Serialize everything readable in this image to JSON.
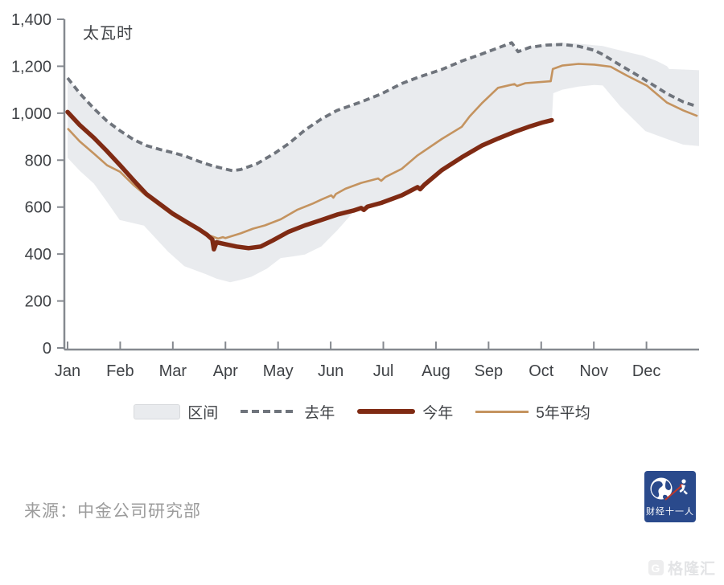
{
  "source": "来源：中金公司研究部",
  "logo": {
    "text": "财经十一人"
  },
  "watermark": {
    "badge": "G",
    "text": "格隆汇"
  },
  "legend": [
    {
      "label": "区间",
      "type": "band"
    },
    {
      "label": "去年",
      "type": "dashed"
    },
    {
      "label": "今年",
      "type": "thick"
    },
    {
      "label": "5年平均",
      "type": "thin"
    }
  ],
  "colors": {
    "band": "#e9ebee",
    "dashed": "#6f747c",
    "thisyear": "#7f2a13",
    "avg5": "#c4935f",
    "axis": "#85898f",
    "tick_label": "#3f4246",
    "source_text": "#9c9c9c",
    "logo_bg": "#2a4a8c",
    "logo_accent": "#c0392b",
    "watermark": "#e3e4e6"
  },
  "chart_data": {
    "type": "line",
    "title": "",
    "ylabel": "太瓦时",
    "ylim": [
      0,
      1400
    ],
    "yticks": [
      0,
      200,
      400,
      600,
      800,
      1000,
      1200,
      1400
    ],
    "x_months": [
      "Jan",
      "Feb",
      "Mar",
      "Apr",
      "May",
      "Jun",
      "Jul",
      "Aug",
      "Sep",
      "Oct",
      "Nov",
      "Dec"
    ],
    "x_unit": "month_fraction (0 = Jan 1, 12 = Dec 31)",
    "grid": false,
    "legend_position": "bottom",
    "series": [
      {
        "name": "去年",
        "style": "dashed",
        "color": "#6f747c",
        "points": [
          [
            0,
            1150
          ],
          [
            0.23,
            1085
          ],
          [
            0.5,
            1020
          ],
          [
            0.75,
            966
          ],
          [
            1,
            925
          ],
          [
            1.25,
            888
          ],
          [
            1.5,
            862
          ],
          [
            1.76,
            845
          ],
          [
            2,
            832
          ],
          [
            2.25,
            816
          ],
          [
            2.49,
            795
          ],
          [
            2.75,
            776
          ],
          [
            3,
            762
          ],
          [
            3.13,
            755
          ],
          [
            3.29,
            760
          ],
          [
            3.6,
            785
          ],
          [
            3.94,
            830
          ],
          [
            4.2,
            870
          ],
          [
            4.51,
            928
          ],
          [
            4.82,
            975
          ],
          [
            5.12,
            1012
          ],
          [
            5.58,
            1048
          ],
          [
            5.96,
            1082
          ],
          [
            6.35,
            1126
          ],
          [
            6.65,
            1152
          ],
          [
            7.11,
            1186
          ],
          [
            7.49,
            1222
          ],
          [
            7.87,
            1252
          ],
          [
            8.18,
            1278
          ],
          [
            8.44,
            1300
          ],
          [
            8.56,
            1262
          ],
          [
            8.79,
            1281
          ],
          [
            9.1,
            1290
          ],
          [
            9.4,
            1293
          ],
          [
            9.71,
            1285
          ],
          [
            10.01,
            1268
          ],
          [
            10.17,
            1250
          ],
          [
            10.5,
            1205
          ],
          [
            10.93,
            1148
          ],
          [
            11.39,
            1083
          ],
          [
            11.7,
            1048
          ],
          [
            11.93,
            1031
          ]
        ]
      },
      {
        "name": "5年平均",
        "style": "thin",
        "color": "#c4935f",
        "points": [
          [
            0,
            935
          ],
          [
            0.23,
            880
          ],
          [
            0.5,
            828
          ],
          [
            0.75,
            778
          ],
          [
            1,
            750
          ],
          [
            1.25,
            695
          ],
          [
            1.5,
            648
          ],
          [
            1.76,
            605
          ],
          [
            2,
            565
          ],
          [
            2.25,
            532
          ],
          [
            2.49,
            502
          ],
          [
            2.71,
            478
          ],
          [
            2.86,
            466
          ],
          [
            2.95,
            472
          ],
          [
            3,
            468
          ],
          [
            3.29,
            488
          ],
          [
            3.52,
            508
          ],
          [
            3.75,
            522
          ],
          [
            4.05,
            548
          ],
          [
            4.36,
            588
          ],
          [
            4.66,
            615
          ],
          [
            4.82,
            632
          ],
          [
            5.01,
            650
          ],
          [
            5.05,
            640
          ],
          [
            5.1,
            656
          ],
          [
            5.28,
            678
          ],
          [
            5.58,
            703
          ],
          [
            5.9,
            722
          ],
          [
            5.96,
            712
          ],
          [
            6.04,
            728
          ],
          [
            6.35,
            763
          ],
          [
            6.65,
            820
          ],
          [
            7.11,
            890
          ],
          [
            7.49,
            942
          ],
          [
            7.64,
            986
          ],
          [
            7.87,
            1042
          ],
          [
            8.18,
            1108
          ],
          [
            8.49,
            1124
          ],
          [
            8.54,
            1116
          ],
          [
            8.7,
            1128
          ],
          [
            9.18,
            1136
          ],
          [
            9.22,
            1188
          ],
          [
            9.4,
            1203
          ],
          [
            9.71,
            1210
          ],
          [
            10.01,
            1207
          ],
          [
            10.32,
            1198
          ],
          [
            10.63,
            1160
          ],
          [
            11.01,
            1117
          ],
          [
            11.39,
            1045
          ],
          [
            11.7,
            1012
          ],
          [
            11.97,
            988
          ]
        ]
      },
      {
        "name": "今年",
        "style": "thick",
        "color": "#7f2a13",
        "points": [
          [
            0,
            1005
          ],
          [
            0.23,
            950
          ],
          [
            0.5,
            895
          ],
          [
            0.75,
            838
          ],
          [
            1,
            778
          ],
          [
            1.25,
            715
          ],
          [
            1.5,
            655
          ],
          [
            1.76,
            612
          ],
          [
            2,
            572
          ],
          [
            2.25,
            538
          ],
          [
            2.5,
            505
          ],
          [
            2.65,
            482
          ],
          [
            2.75,
            462
          ],
          [
            2.78,
            420
          ],
          [
            2.83,
            450
          ],
          [
            3,
            442
          ],
          [
            3.21,
            432
          ],
          [
            3.44,
            425
          ],
          [
            3.67,
            432
          ],
          [
            3.9,
            458
          ],
          [
            4.2,
            495
          ],
          [
            4.51,
            522
          ],
          [
            4.82,
            545
          ],
          [
            5.12,
            568
          ],
          [
            5.43,
            585
          ],
          [
            5.58,
            596
          ],
          [
            5.63,
            588
          ],
          [
            5.7,
            602
          ],
          [
            5.96,
            618
          ],
          [
            6.35,
            650
          ],
          [
            6.65,
            685
          ],
          [
            6.7,
            676
          ],
          [
            6.78,
            695
          ],
          [
            7.11,
            757
          ],
          [
            7.49,
            812
          ],
          [
            7.87,
            862
          ],
          [
            8.18,
            892
          ],
          [
            8.49,
            920
          ],
          [
            8.79,
            944
          ],
          [
            9.02,
            960
          ],
          [
            9.2,
            970
          ]
        ]
      }
    ],
    "band": {
      "name": "区间",
      "color": "#e9ebee",
      "top": [
        [
          0,
          1150
        ],
        [
          0.23,
          1085
        ],
        [
          0.5,
          1020
        ],
        [
          0.75,
          966
        ],
        [
          1,
          925
        ],
        [
          1.25,
          888
        ],
        [
          1.5,
          862
        ],
        [
          1.76,
          845
        ],
        [
          2,
          832
        ],
        [
          2.25,
          816
        ],
        [
          2.49,
          795
        ],
        [
          2.75,
          776
        ],
        [
          3,
          762
        ],
        [
          3.13,
          755
        ],
        [
          3.29,
          760
        ],
        [
          3.6,
          785
        ],
        [
          3.94,
          830
        ],
        [
          4.2,
          870
        ],
        [
          4.51,
          928
        ],
        [
          4.82,
          975
        ],
        [
          5.12,
          1012
        ],
        [
          5.58,
          1048
        ],
        [
          5.96,
          1082
        ],
        [
          6.35,
          1126
        ],
        [
          6.65,
          1152
        ],
        [
          7.11,
          1186
        ],
        [
          7.49,
          1222
        ],
        [
          7.87,
          1252
        ],
        [
          8.18,
          1278
        ],
        [
          8.44,
          1300
        ],
        [
          8.56,
          1262
        ],
        [
          8.79,
          1284
        ],
        [
          9.1,
          1294
        ],
        [
          9.4,
          1300
        ],
        [
          9.71,
          1296
        ],
        [
          10.17,
          1286
        ],
        [
          10.6,
          1262
        ],
        [
          10.93,
          1245
        ],
        [
          11.2,
          1222
        ],
        [
          11.39,
          1200
        ],
        [
          11.43,
          1188
        ],
        [
          11.7,
          1186
        ],
        [
          12,
          1183
        ]
      ],
      "bottom": [
        [
          0,
          810
        ],
        [
          0.23,
          755
        ],
        [
          0.5,
          700
        ],
        [
          0.75,
          622
        ],
        [
          0.99,
          545
        ],
        [
          1.45,
          521
        ],
        [
          1.91,
          410
        ],
        [
          2.22,
          348
        ],
        [
          2.63,
          314
        ],
        [
          2.83,
          295
        ],
        [
          3.09,
          280
        ],
        [
          3.29,
          290
        ],
        [
          3.49,
          303
        ],
        [
          3.79,
          338
        ],
        [
          4.05,
          383
        ],
        [
          4.28,
          390
        ],
        [
          4.51,
          398
        ],
        [
          4.82,
          432
        ],
        [
          5.12,
          500
        ],
        [
          5.43,
          578
        ],
        [
          5.58,
          593
        ],
        [
          5.96,
          615
        ],
        [
          6.35,
          647
        ],
        [
          6.78,
          692
        ],
        [
          7.11,
          754
        ],
        [
          7.49,
          809
        ],
        [
          7.87,
          859
        ],
        [
          8.18,
          889
        ],
        [
          8.49,
          917
        ],
        [
          8.79,
          941
        ],
        [
          9.02,
          957
        ],
        [
          9.2,
          967
        ],
        [
          9.23,
          1085
        ],
        [
          9.4,
          1100
        ],
        [
          9.71,
          1113
        ],
        [
          10.01,
          1120
        ],
        [
          10.17,
          1118
        ],
        [
          10.5,
          1030
        ],
        [
          10.98,
          924
        ],
        [
          11.39,
          890
        ],
        [
          11.7,
          866
        ],
        [
          12,
          860
        ]
      ]
    }
  }
}
